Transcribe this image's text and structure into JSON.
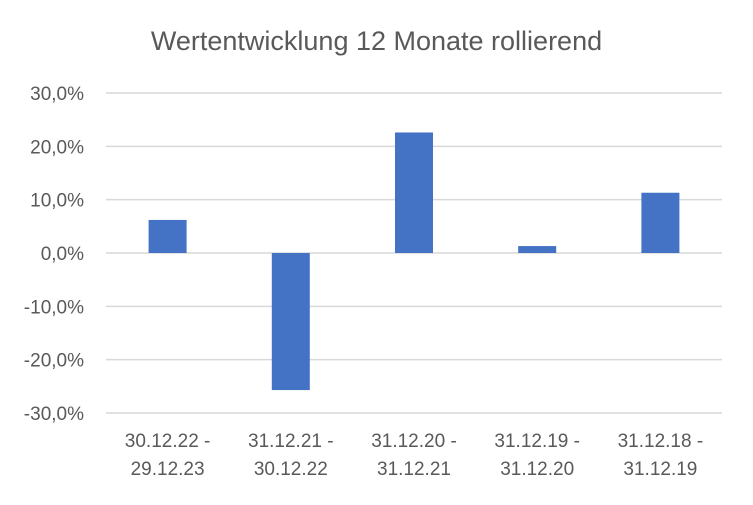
{
  "chart_data": {
    "type": "bar",
    "title": "Wertentwicklung 12 Monate rollierend",
    "categories": [
      [
        "30.12.22 -",
        "29.12.23"
      ],
      [
        "31.12.21 -",
        "30.12.22"
      ],
      [
        "31.12.20 -",
        "31.12.21"
      ],
      [
        "31.12.19 -",
        "31.12.20"
      ],
      [
        "31.12.18 -",
        "31.12.19"
      ]
    ],
    "values": [
      6.2,
      -25.7,
      22.6,
      1.3,
      11.3
    ],
    "ylim": [
      -30,
      30
    ],
    "yticks": [
      30,
      20,
      10,
      0,
      -10,
      -20,
      -30
    ],
    "ytick_labels": [
      "30,0%",
      "20,0%",
      "10,0%",
      "0,0%",
      "-10,0%",
      "-20,0%",
      "-30,0%"
    ],
    "xlabel": "",
    "ylabel": "",
    "grid": true,
    "bar_color": "#4472C4"
  }
}
